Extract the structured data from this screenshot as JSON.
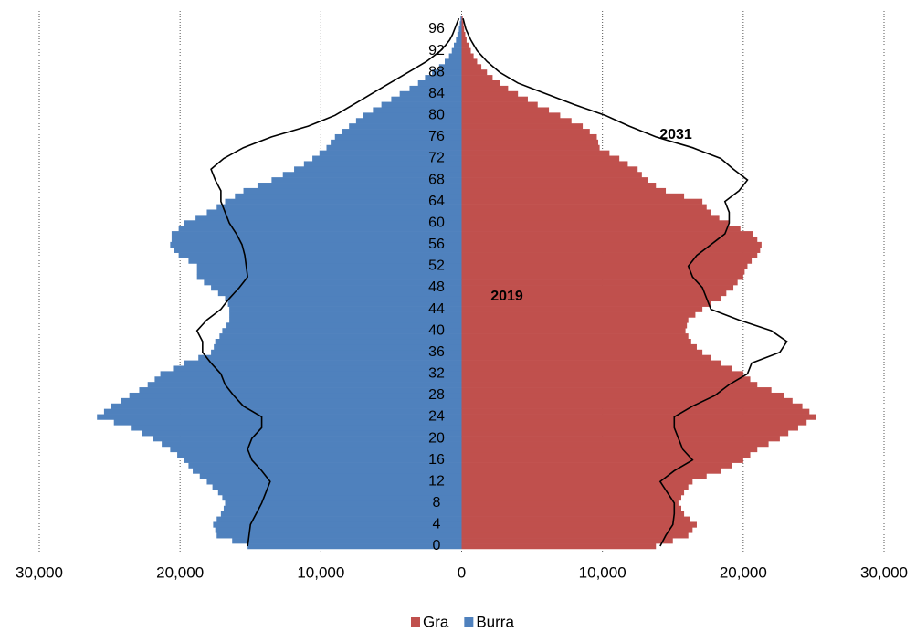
{
  "chart_data": {
    "type": "pyramid",
    "categories": [
      0,
      null,
      null,
      null,
      4,
      null,
      null,
      null,
      8,
      null,
      null,
      null,
      12,
      null,
      null,
      null,
      16,
      null,
      null,
      null,
      20,
      null,
      null,
      null,
      24,
      null,
      null,
      null,
      28,
      null,
      null,
      null,
      32,
      null,
      null,
      null,
      36,
      null,
      null,
      null,
      40,
      null,
      null,
      null,
      44,
      null,
      null,
      null,
      48,
      null,
      null,
      null,
      52,
      null,
      null,
      null,
      56,
      null,
      null,
      null,
      60,
      null,
      null,
      null,
      64,
      null,
      null,
      null,
      68,
      null,
      null,
      null,
      72,
      null,
      null,
      null,
      76,
      null,
      null,
      null,
      80,
      null,
      null,
      null,
      84,
      null,
      null,
      null,
      88,
      null,
      null,
      null,
      92,
      null,
      null,
      null,
      96,
      null,
      null
    ],
    "series": [
      {
        "name": "Gra",
        "color": "#c0504d",
        "side": "right",
        "values": [
          13800,
          15000,
          16100,
          16400,
          16700,
          16200,
          15800,
          15600,
          15400,
          15600,
          15800,
          16100,
          16400,
          17400,
          18400,
          19200,
          20000,
          20500,
          21000,
          21800,
          22600,
          23200,
          23900,
          24500,
          25200,
          24700,
          24200,
          23500,
          22900,
          22000,
          21000,
          20500,
          20000,
          19200,
          18400,
          17700,
          17100,
          16700,
          16300,
          16100,
          15900,
          16000,
          16100,
          16600,
          17100,
          17700,
          18400,
          18800,
          19300,
          19600,
          20000,
          20100,
          20300,
          20600,
          21000,
          21200,
          21300,
          21000,
          20700,
          19800,
          19000,
          18300,
          17700,
          17400,
          17100,
          15800,
          14500,
          13800,
          13200,
          12800,
          12500,
          11800,
          11200,
          10500,
          9800,
          9700,
          9600,
          9100,
          8600,
          7800,
          7000,
          6200,
          5400,
          4700,
          4000,
          3300,
          2700,
          2200,
          1800,
          1400,
          1100,
          850,
          650,
          500,
          350,
          260,
          180,
          130,
          80
        ]
      },
      {
        "name": "Burra",
        "color": "#4f81bd",
        "side": "left",
        "values": [
          15200,
          16300,
          17400,
          17500,
          17650,
          17400,
          17100,
          16900,
          16800,
          17000,
          17300,
          17700,
          18100,
          18600,
          19100,
          19400,
          19700,
          20200,
          20700,
          21300,
          21900,
          22700,
          23500,
          24700,
          25900,
          25400,
          24900,
          24200,
          23600,
          22900,
          22300,
          21800,
          21400,
          20500,
          19700,
          18700,
          17800,
          17600,
          17500,
          17200,
          17000,
          16700,
          16500,
          16500,
          16500,
          16600,
          16800,
          17300,
          17800,
          18300,
          18800,
          18800,
          18800,
          19400,
          20100,
          20400,
          20700,
          20600,
          20600,
          20100,
          19700,
          18900,
          18100,
          17400,
          16800,
          16100,
          15500,
          14500,
          13500,
          12700,
          11900,
          11200,
          10600,
          10100,
          9600,
          9300,
          9000,
          8500,
          8000,
          7500,
          7000,
          6300,
          5700,
          5000,
          4400,
          3700,
          3100,
          2600,
          2100,
          1600,
          1200,
          900,
          700,
          550,
          400,
          300,
          200,
          130,
          80
        ]
      }
    ],
    "lines": [
      {
        "color": "#000000",
        "side": "right",
        "values": [
          14100,
          14300,
          14500,
          14750,
          15000,
          15050,
          15100,
          15100,
          15100,
          14850,
          14600,
          14350,
          14100,
          14600,
          15100,
          15750,
          16400,
          16050,
          15700,
          15550,
          15400,
          15250,
          15100,
          15100,
          15100,
          15750,
          16400,
          17200,
          18000,
          18500,
          19000,
          19650,
          20300,
          20450,
          20600,
          21600,
          22600,
          22850,
          23100,
          22550,
          22000,
          20850,
          19700,
          18700,
          17700,
          17550,
          17400,
          17250,
          17100,
          16750,
          16400,
          16250,
          16100,
          16400,
          16700,
          17200,
          17700,
          18200,
          18700,
          18850,
          19000,
          19000,
          19000,
          18850,
          18700,
          19200,
          19700,
          20000,
          20300,
          19800,
          19300,
          18850,
          18400,
          17400,
          16400,
          15100,
          13800,
          12850,
          11900,
          11050,
          10200,
          9100,
          8000,
          7000,
          6000,
          5000,
          4000,
          3350,
          2700,
          2250,
          1800,
          1450,
          1100,
          875,
          650,
          475,
          300,
          200,
          100
        ]
      },
      {
        "color": "#000000",
        "side": "left",
        "values": [
          15200,
          15150,
          15100,
          15050,
          15000,
          14800,
          14600,
          14400,
          14200,
          14050,
          13900,
          13750,
          13600,
          13900,
          14200,
          14550,
          14900,
          15050,
          15200,
          15050,
          14900,
          14550,
          14200,
          14200,
          14200,
          14850,
          15500,
          15850,
          16200,
          16500,
          16800,
          16950,
          17100,
          17450,
          17800,
          18100,
          18400,
          18400,
          18400,
          18600,
          18800,
          18450,
          18100,
          17600,
          17100,
          16800,
          16500,
          16150,
          15800,
          15500,
          15200,
          15250,
          15300,
          15350,
          15400,
          15500,
          15600,
          15800,
          16000,
          16250,
          16500,
          16650,
          16800,
          16950,
          17100,
          17100,
          17100,
          17300,
          17500,
          17650,
          17800,
          17350,
          16900,
          16200,
          15500,
          14500,
          13500,
          12200,
          10900,
          9950,
          9000,
          8350,
          7700,
          7050,
          6400,
          5750,
          5100,
          4450,
          3800,
          3150,
          2500,
          2000,
          1500,
          1150,
          850,
          650,
          500,
          350,
          200
        ]
      }
    ],
    "annotations": [
      "2031",
      "2019"
    ],
    "xlim": [
      -30000,
      30000
    ],
    "xticks": [
      {
        "value": -30000,
        "label": "30,000"
      },
      {
        "value": -20000,
        "label": "20,000"
      },
      {
        "value": -10000,
        "label": "10,000"
      },
      0,
      {
        "value": 10000,
        "label": "10,000"
      },
      {
        "value": 20000,
        "label": "20,000"
      },
      {
        "value": 30000,
        "label": "30,000"
      }
    ],
    "grid": true,
    "legend": "bottom"
  }
}
